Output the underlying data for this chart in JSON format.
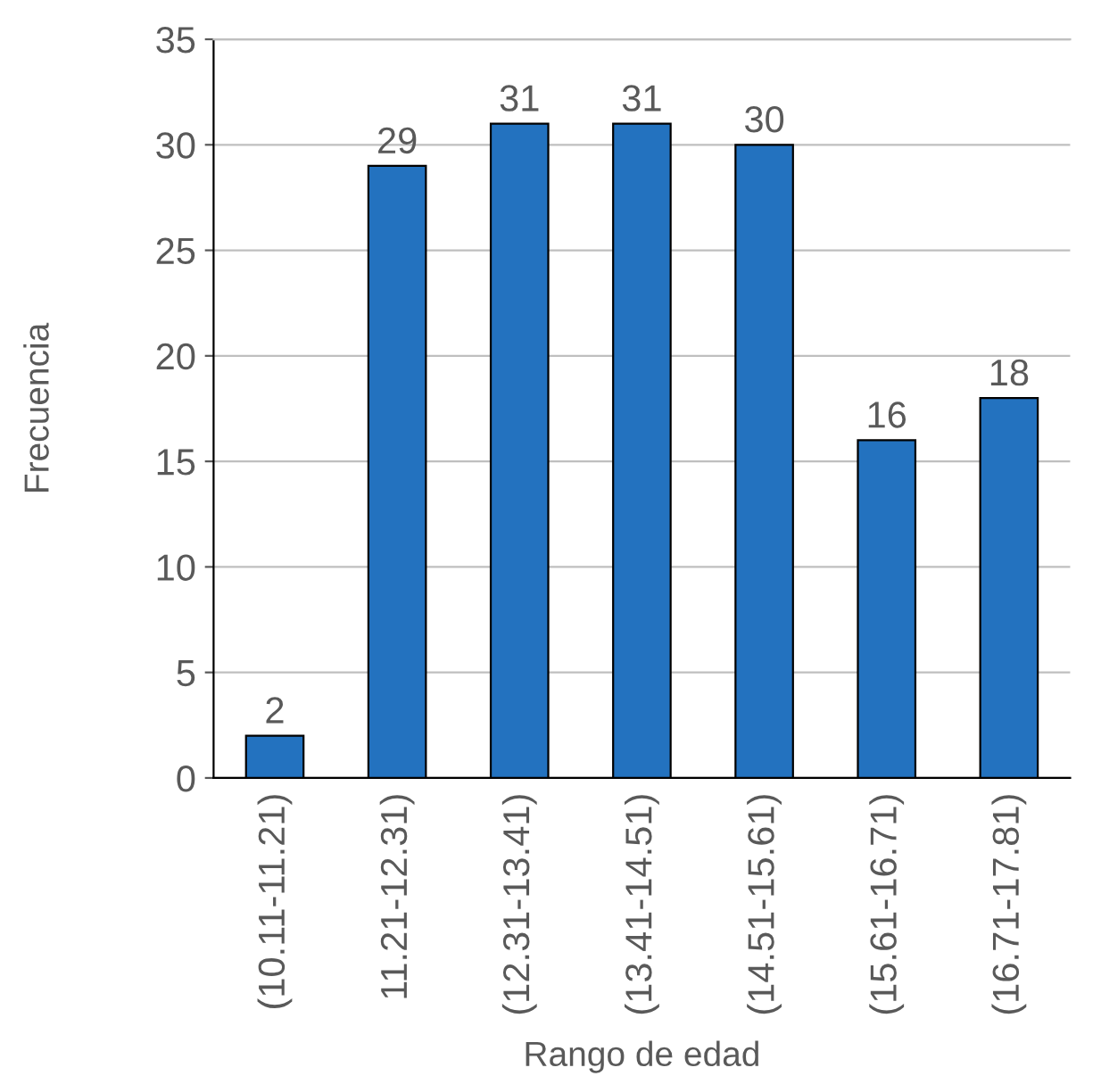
{
  "chart_data": {
    "type": "bar",
    "xlabel": "Rango de edad",
    "ylabel": "Frecuencia",
    "categories": [
      "(10.11-11.21)",
      "11.21-12.31)",
      "(12.31-13.41)",
      "(13.41-14.51)",
      "(14.51-15.61)",
      "(15.61-16.71)",
      "(16.71-17.81)"
    ],
    "values": [
      2,
      29,
      31,
      31,
      30,
      16,
      18
    ],
    "color": "#2372bf",
    "ylim": [
      0,
      35
    ],
    "yticks": [
      0,
      5,
      10,
      15,
      20,
      25,
      30,
      35
    ],
    "grid": "y",
    "data_labels": true,
    "legend": false
  }
}
